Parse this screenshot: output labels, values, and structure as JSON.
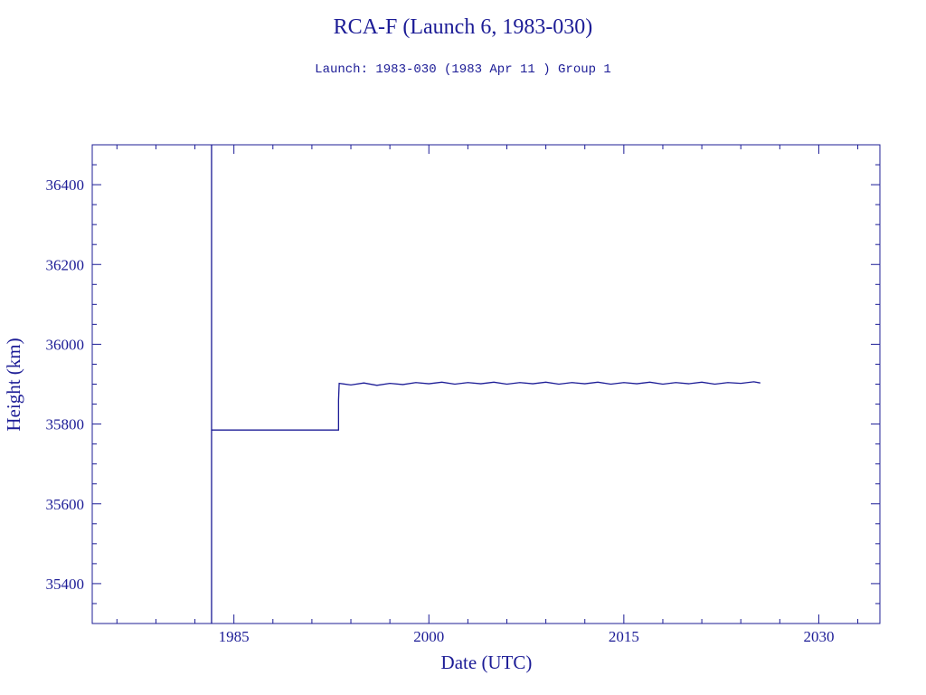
{
  "chart_data": {
    "type": "line",
    "title": "RCA-F (Launch 6, 1983-030)",
    "subtitle": "Launch: 1983-030  (1983 Apr 11 )  Group 1",
    "xlabel": "Date (UTC)",
    "ylabel": "Height (km)",
    "color": "#1c1c96",
    "xlim": [
      1974.1,
      2034.7
    ],
    "xticks": [
      1985,
      2000,
      2015,
      2030
    ],
    "xminorticks": [
      1976,
      1979,
      1982,
      1988,
      1991,
      1994,
      1997,
      2003,
      2006,
      2009,
      2012,
      2018,
      2021,
      2024,
      2027,
      2033
    ],
    "ylim": [
      35300,
      36500
    ],
    "yticks": [
      35400,
      35600,
      35800,
      36000,
      36200,
      36400
    ],
    "yminorticks": [
      35350,
      35450,
      35500,
      35550,
      35650,
      35700,
      35750,
      35850,
      35900,
      35950,
      36050,
      36100,
      36150,
      36250,
      36300,
      36350,
      36450
    ],
    "series": [
      {
        "name": "Height",
        "x": [
          1983.28,
          1983.28,
          1983.28,
          1986,
          1989,
          1993.05,
          1993.05,
          1993.1,
          1994,
          1995,
          1996,
          1997,
          1998,
          1999,
          2000,
          2001,
          2002,
          2003,
          2004,
          2005,
          2006,
          2007,
          2008,
          2009,
          2010,
          2011,
          2012,
          2013,
          2014,
          2015,
          2016,
          2017,
          2018,
          2019,
          2020,
          2021,
          2022,
          2023,
          2024,
          2025,
          2025.5
        ],
        "values": [
          35300,
          36500,
          35785,
          35785,
          35785,
          35785,
          35860,
          35902,
          35898,
          35903,
          35897,
          35902,
          35899,
          35904,
          35901,
          35905,
          35900,
          35904,
          35901,
          35905,
          35900,
          35904,
          35901,
          35905,
          35900,
          35904,
          35901,
          35905,
          35900,
          35904,
          35901,
          35905,
          35900,
          35904,
          35901,
          35905,
          35900,
          35904,
          35902,
          35906,
          35903
        ]
      }
    ]
  }
}
